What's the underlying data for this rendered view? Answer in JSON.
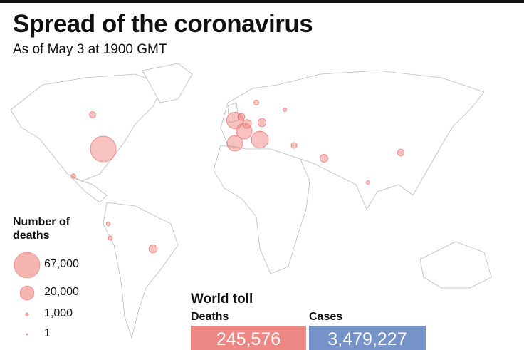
{
  "header": {
    "title": "Spread of the coronavirus",
    "subtitle": "As of May 3 at 1900 GMT"
  },
  "legend": {
    "title": "Number of deaths",
    "entries": [
      {
        "value": 67000,
        "label": "67,000"
      },
      {
        "value": 20000,
        "label": "20,000"
      },
      {
        "value": 1000,
        "label": "1,000"
      },
      {
        "value": 1,
        "label": "1"
      }
    ]
  },
  "map": {
    "bubbles": [
      67000,
      28000,
      28900,
      25000,
      24800,
      8000,
      6800,
      5000,
      3400,
      7000,
      6200,
      4000,
      2100,
      4600,
      1300,
      1800,
      1500,
      2700,
      1200
    ]
  },
  "toll": {
    "title": "World toll",
    "deaths": {
      "label": "Deaths",
      "value": "245,576"
    },
    "cases": {
      "label": "Cases",
      "value": "3,479,227"
    }
  }
}
